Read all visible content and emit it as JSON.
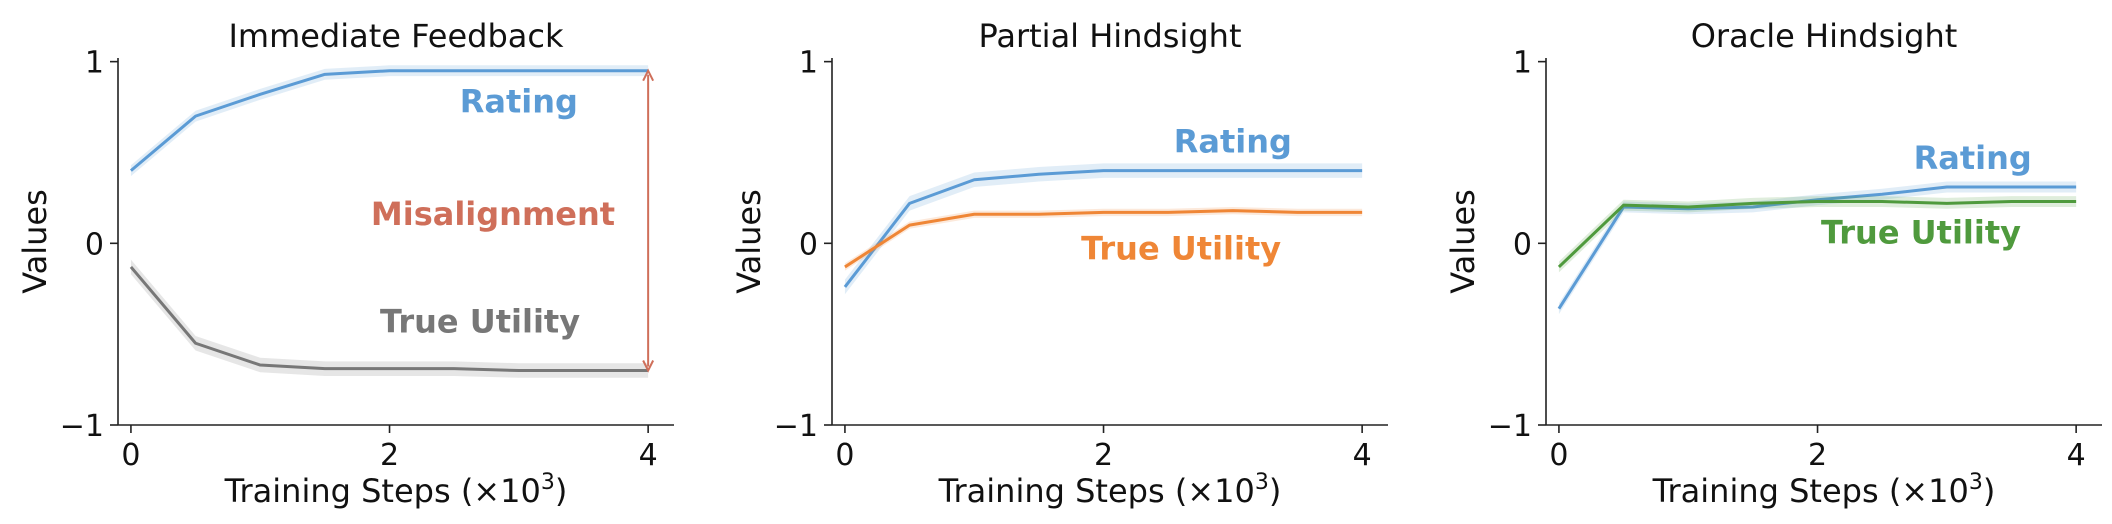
{
  "chart_data": [
    {
      "type": "line",
      "title": "Immediate Feedback",
      "xlabel": "Training Steps (×10",
      "xlabel_sup": "3",
      "xlabel_end": ")",
      "ylabel": "Values",
      "xlim": [
        -0.1,
        4.2
      ],
      "ylim": [
        -1,
        1.02
      ],
      "xticks": [
        0,
        2,
        4
      ],
      "yticks": [
        -1,
        0,
        1
      ],
      "ytick_labels": [
        "−1",
        "0",
        "1"
      ],
      "x": [
        0,
        0.5,
        1,
        1.5,
        2,
        2.5,
        3,
        3.5,
        4
      ],
      "series": [
        {
          "name": "Rating",
          "color": "#5b9bd5",
          "values": [
            0.4,
            0.7,
            0.82,
            0.93,
            0.95,
            0.95,
            0.95,
            0.95,
            0.95
          ],
          "band": 0.03
        },
        {
          "name": "True Utility",
          "color": "#777777",
          "values": [
            -0.13,
            -0.55,
            -0.67,
            -0.69,
            -0.69,
            -0.69,
            -0.7,
            -0.7,
            -0.7
          ],
          "band": 0.04
        }
      ],
      "labels": [
        {
          "text": "Rating",
          "series": 0,
          "x": 3.0,
          "y": 0.72
        },
        {
          "text": "Misalignment",
          "color": "#cf6f5a",
          "x": 2.8,
          "y": 0.1
        },
        {
          "text": "True Utility",
          "series": 1,
          "x": 2.7,
          "y": -0.49
        }
      ],
      "arrow": {
        "x": 4.0,
        "y_from": 0.95,
        "y_to": -0.7,
        "color": "#cf6f5a"
      }
    },
    {
      "type": "line",
      "title": "Partial Hindsight",
      "xlabel": "Training Steps (×10",
      "xlabel_sup": "3",
      "xlabel_end": ")",
      "ylabel": "Values",
      "xlim": [
        -0.1,
        4.2
      ],
      "ylim": [
        -1,
        1.02
      ],
      "xticks": [
        0,
        2,
        4
      ],
      "yticks": [
        -1,
        0,
        1
      ],
      "ytick_labels": [
        "−1",
        "0",
        "1"
      ],
      "x": [
        0,
        0.5,
        1,
        1.5,
        2,
        2.5,
        3,
        3.5,
        4
      ],
      "series": [
        {
          "name": "Rating",
          "color": "#5b9bd5",
          "values": [
            -0.24,
            0.22,
            0.35,
            0.38,
            0.4,
            0.4,
            0.4,
            0.4,
            0.4
          ],
          "band": 0.04
        },
        {
          "name": "True Utility",
          "color": "#ef8636",
          "values": [
            -0.13,
            0.1,
            0.16,
            0.16,
            0.17,
            0.17,
            0.18,
            0.17,
            0.17
          ],
          "band": 0.02
        }
      ],
      "labels": [
        {
          "text": "Rating",
          "series": 0,
          "x": 3.0,
          "y": 0.5
        },
        {
          "text": "True Utility",
          "series": 1,
          "x": 2.6,
          "y": -0.09
        }
      ]
    },
    {
      "type": "line",
      "title": "Oracle Hindsight",
      "xlabel": "Training Steps (×10",
      "xlabel_sup": "3",
      "xlabel_end": ")",
      "ylabel": "Values",
      "xlim": [
        -0.1,
        4.2
      ],
      "ylim": [
        -1,
        1.02
      ],
      "xticks": [
        0,
        2,
        4
      ],
      "yticks": [
        -1,
        0,
        1
      ],
      "ytick_labels": [
        "−1",
        "0",
        "1"
      ],
      "x": [
        0,
        0.5,
        1,
        1.5,
        2,
        2.5,
        3,
        3.5,
        4
      ],
      "series": [
        {
          "name": "Rating",
          "color": "#5b9bd5",
          "values": [
            -0.36,
            0.2,
            0.19,
            0.2,
            0.24,
            0.27,
            0.31,
            0.31,
            0.31
          ],
          "band": 0.03
        },
        {
          "name": "True Utility",
          "color": "#4f9a3d",
          "values": [
            -0.13,
            0.21,
            0.2,
            0.22,
            0.23,
            0.23,
            0.22,
            0.23,
            0.23
          ],
          "band": 0.03
        }
      ],
      "labels": [
        {
          "text": "Rating",
          "series": 0,
          "x": 3.2,
          "y": 0.41
        },
        {
          "text": "True Utility",
          "series": 1,
          "x": 2.8,
          "y": 0.0
        }
      ]
    }
  ]
}
